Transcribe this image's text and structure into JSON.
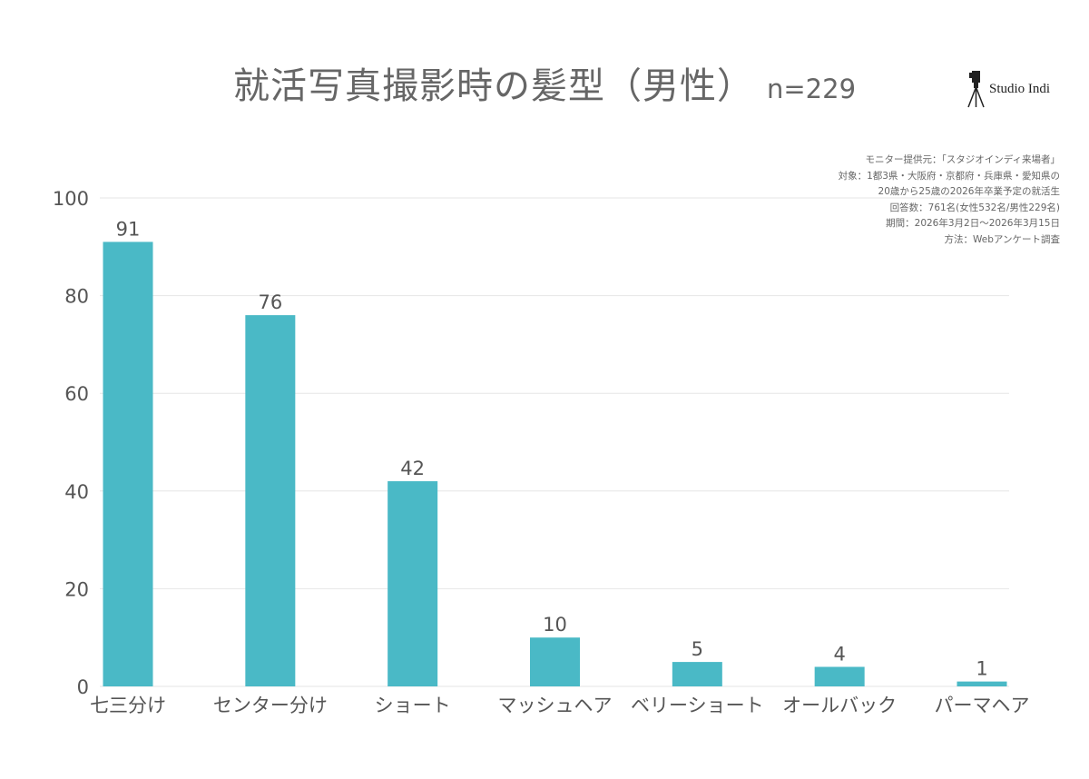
{
  "header": {
    "title": "就活写真撮影時の髪型（男性）",
    "n_label": "n=229"
  },
  "logo": {
    "text": "Studio Indi",
    "icon": "camera-tripod-icon"
  },
  "notes": [
    "モニター提供元：「スタジオインディ来場者」",
    "対象：1都3県・大阪府・京都府・兵庫県・愛知県の",
    "20歳から25歳の2026年卒業予定の就活生",
    "回答数：761名(女性532名/男性229名)",
    "期間：2026年3月2日〜2026年3月15日",
    "方法：Webアンケート調査"
  ],
  "colors": {
    "bar": "#4ab9c6",
    "grid": "#e6e6e6",
    "text": "#555555"
  },
  "chart_data": {
    "type": "bar",
    "title": "就活写真撮影時の髪型（男性）",
    "categories": [
      "七三分け",
      "センター分け",
      "ショート",
      "マッシュヘア",
      "ベリーショート",
      "オールバック",
      "パーマヘア"
    ],
    "values": [
      91,
      76,
      42,
      10,
      5,
      4,
      1
    ],
    "ylim": [
      0,
      100
    ],
    "yticks": [
      0,
      20,
      40,
      60,
      80,
      100
    ],
    "grid": true,
    "legend": "none"
  }
}
